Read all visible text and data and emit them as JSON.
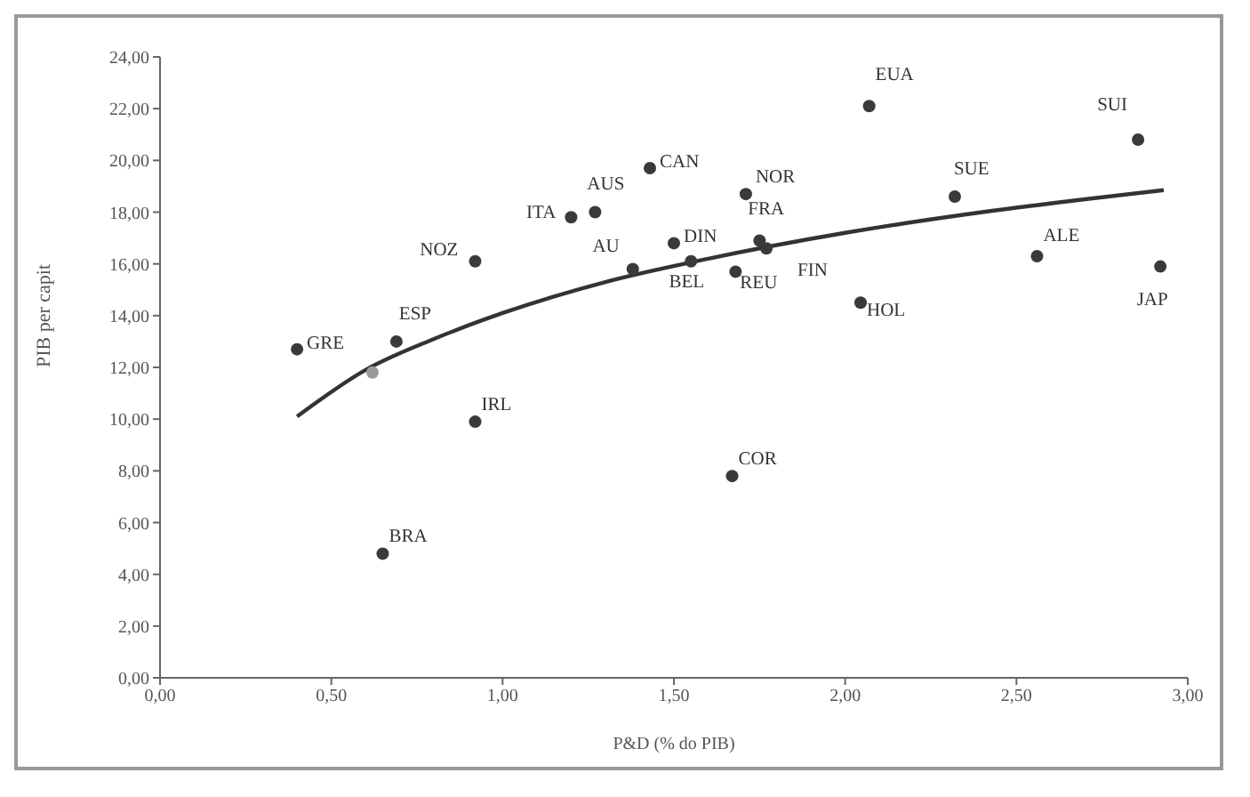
{
  "chart_data": {
    "type": "scatter",
    "xlabel": "P&D (% do PIB)",
    "ylabel": "PIB per capit",
    "xlim": [
      0,
      3
    ],
    "ylim": [
      0,
      24
    ],
    "xticks": [
      {
        "value": 0,
        "label": "0,00"
      },
      {
        "value": 0.5,
        "label": "0,50"
      },
      {
        "value": 1,
        "label": "1,00"
      },
      {
        "value": 1.5,
        "label": "1,50"
      },
      {
        "value": 2,
        "label": "2,00"
      },
      {
        "value": 2.5,
        "label": "2,50"
      },
      {
        "value": 3,
        "label": "3,00"
      }
    ],
    "yticks": [
      {
        "value": 0,
        "label": "0,00"
      },
      {
        "value": 2,
        "label": "2,00"
      },
      {
        "value": 4,
        "label": "4,00"
      },
      {
        "value": 6,
        "label": "6,00"
      },
      {
        "value": 8,
        "label": "8,00"
      },
      {
        "value": 10,
        "label": "10,00"
      },
      {
        "value": 12,
        "label": "12,00"
      },
      {
        "value": 14,
        "label": "14,00"
      },
      {
        "value": 16,
        "label": "16,00"
      },
      {
        "value": 18,
        "label": "18,00"
      },
      {
        "value": 20,
        "label": "20,00"
      },
      {
        "value": 22,
        "label": "22,00"
      },
      {
        "value": 24,
        "label": "24,00"
      }
    ],
    "grid": false,
    "legend": false,
    "marker": "circle",
    "series": [
      {
        "color": "#3a3a3a",
        "x": [
          0.4,
          0.62,
          0.69,
          0.92,
          0.92,
          0.65,
          1.2,
          1.27,
          1.43,
          1.38,
          1.5,
          1.55,
          1.71,
          1.75,
          1.77,
          1.68,
          1.67,
          2.07,
          2.32,
          2.045,
          2.56,
          2.855,
          2.92
        ],
        "values": [
          12.7,
          11.8,
          13.0,
          16.1,
          9.9,
          4.8,
          17.8,
          18.0,
          19.7,
          15.8,
          16.8,
          16.1,
          18.7,
          16.9,
          16.6,
          15.7,
          7.8,
          22.1,
          18.6,
          14.5,
          16.3,
          20.8,
          15.9
        ],
        "colors": [
          "#3a3a3a",
          "#9a9a9a",
          "#3a3a3a",
          "#3a3a3a",
          "#3a3a3a",
          "#3a3a3a",
          "#3a3a3a",
          "#3a3a3a",
          "#3a3a3a",
          "#3a3a3a",
          "#3a3a3a",
          "#3a3a3a",
          "#3a3a3a",
          "#3a3a3a",
          "#3a3a3a",
          "#3a3a3a",
          "#3a3a3a",
          "#3a3a3a",
          "#3a3a3a",
          "#3a3a3a",
          "#3a3a3a",
          "#3a3a3a",
          "#3a3a3a"
        ],
        "value_labels": [
          "GRE",
          null,
          "ESP",
          "NOZ",
          "IRL",
          "BRA",
          "ITA",
          "AUS",
          "CAN",
          "AU",
          "DIN",
          "BEL",
          "NOR",
          "FRA",
          "FIN",
          "REU",
          "COR",
          "EUA",
          "SUE",
          "HOL",
          "ALE",
          "SUI",
          "JAP"
        ]
      },
      {
        "type": "line",
        "color": "#333333",
        "marker": "none",
        "x": [
          0.4,
          0.6,
          0.8,
          1.0,
          1.3,
          1.6,
          2.0,
          2.4,
          2.7,
          2.93
        ],
        "values": [
          10.1,
          11.9,
          13.1,
          14.1,
          15.3,
          16.2,
          17.2,
          18.0,
          18.5,
          18.85
        ]
      }
    ]
  }
}
